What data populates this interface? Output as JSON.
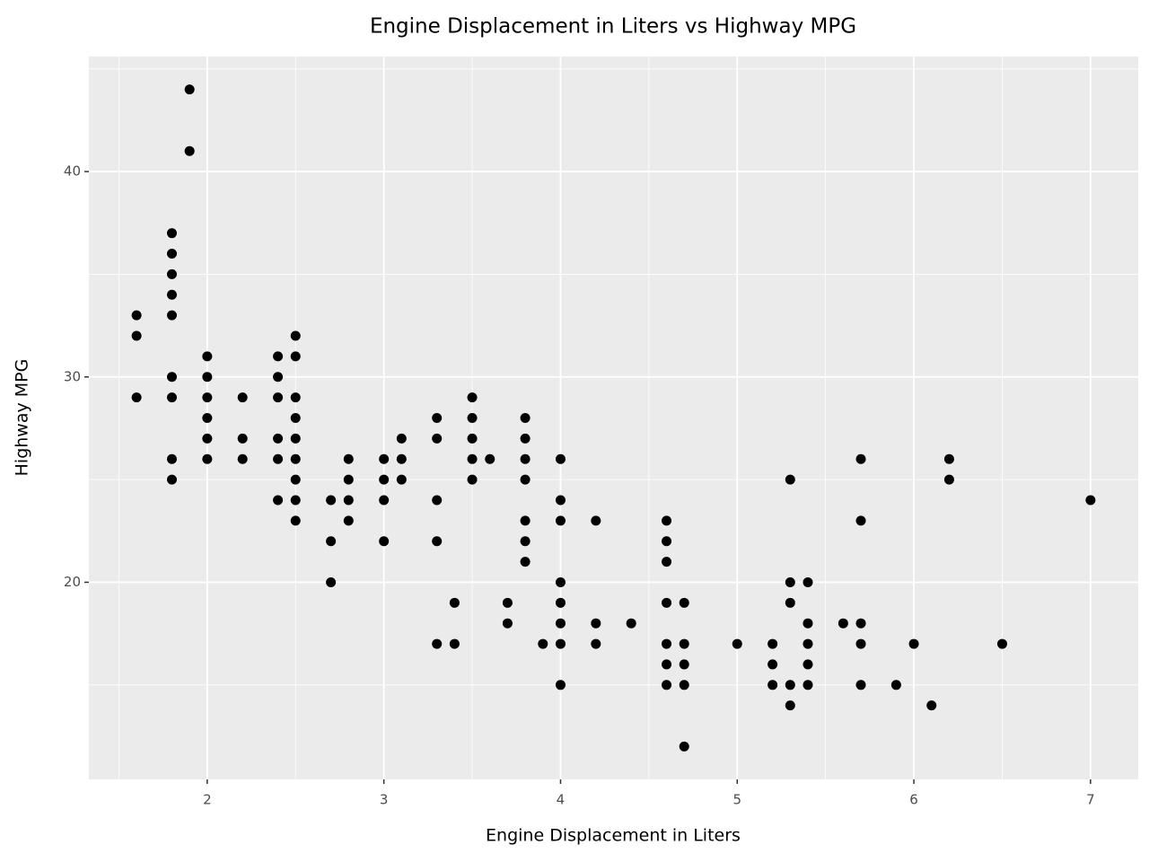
{
  "chart_data": {
    "type": "scatter",
    "title": "Engine Displacement in Liters vs Highway MPG",
    "x_label": "Engine Displacement in Liters",
    "y_label": "Highway MPG",
    "color": "#000000",
    "grid": true,
    "xlim": [
      1.33,
      7.27
    ],
    "ylim": [
      10.4,
      45.6
    ],
    "xticks": [
      2,
      3,
      4,
      5,
      6,
      7
    ],
    "yticks": [
      20,
      30,
      40
    ],
    "x_minor_ticks": [
      1.5,
      2.5,
      3.5,
      4.5,
      5.5,
      6.5
    ],
    "y_minor_ticks": [
      15,
      25,
      35,
      45
    ],
    "x": [
      1.6,
      1.6,
      1.6,
      1.8,
      1.8,
      1.8,
      1.8,
      1.8,
      1.8,
      1.8,
      1.8,
      1.8,
      1.9,
      1.9,
      2.0,
      2.0,
      2.0,
      2.0,
      2.0,
      2.0,
      2.2,
      2.2,
      2.2,
      2.4,
      2.4,
      2.4,
      2.4,
      2.4,
      2.4,
      2.5,
      2.5,
      2.5,
      2.5,
      2.5,
      2.5,
      2.5,
      2.5,
      2.5,
      2.7,
      2.7,
      2.7,
      2.8,
      2.8,
      2.8,
      2.8,
      3.0,
      3.0,
      3.0,
      3.0,
      3.1,
      3.1,
      3.1,
      3.3,
      3.3,
      3.3,
      3.3,
      3.3,
      3.4,
      3.4,
      3.5,
      3.5,
      3.5,
      3.5,
      3.5,
      3.6,
      3.7,
      3.7,
      3.8,
      3.8,
      3.8,
      3.8,
      3.8,
      3.8,
      3.8,
      3.9,
      4.0,
      4.0,
      4.0,
      4.0,
      4.0,
      4.0,
      4.0,
      4.0,
      4.2,
      4.2,
      4.2,
      4.4,
      4.6,
      4.6,
      4.6,
      4.6,
      4.6,
      4.6,
      4.6,
      4.7,
      4.7,
      4.7,
      4.7,
      4.7,
      5.0,
      5.2,
      5.2,
      5.2,
      5.3,
      5.3,
      5.3,
      5.3,
      5.3,
      5.4,
      5.4,
      5.4,
      5.4,
      5.4,
      5.6,
      5.7,
      5.7,
      5.7,
      5.7,
      5.7,
      5.9,
      6.0,
      6.1,
      6.2,
      6.2,
      6.5,
      7.0
    ],
    "values": [
      33,
      32,
      29,
      37,
      36,
      35,
      34,
      33,
      30,
      29,
      26,
      25,
      44,
      41,
      31,
      30,
      29,
      28,
      27,
      26,
      29,
      27,
      26,
      31,
      30,
      29,
      27,
      26,
      24,
      32,
      31,
      29,
      28,
      27,
      26,
      25,
      24,
      23,
      24,
      22,
      20,
      26,
      25,
      24,
      23,
      26,
      25,
      24,
      22,
      27,
      26,
      25,
      28,
      27,
      24,
      22,
      17,
      19,
      17,
      29,
      28,
      27,
      26,
      25,
      26,
      19,
      18,
      28,
      27,
      26,
      25,
      23,
      22,
      21,
      17,
      26,
      24,
      23,
      20,
      19,
      18,
      17,
      15,
      23,
      18,
      17,
      18,
      23,
      22,
      21,
      19,
      17,
      16,
      15,
      19,
      17,
      16,
      15,
      12,
      17,
      17,
      16,
      15,
      25,
      20,
      19,
      15,
      14,
      20,
      18,
      17,
      16,
      15,
      18,
      26,
      23,
      18,
      17,
      15,
      15,
      17,
      14,
      26,
      25,
      17,
      24
    ]
  }
}
